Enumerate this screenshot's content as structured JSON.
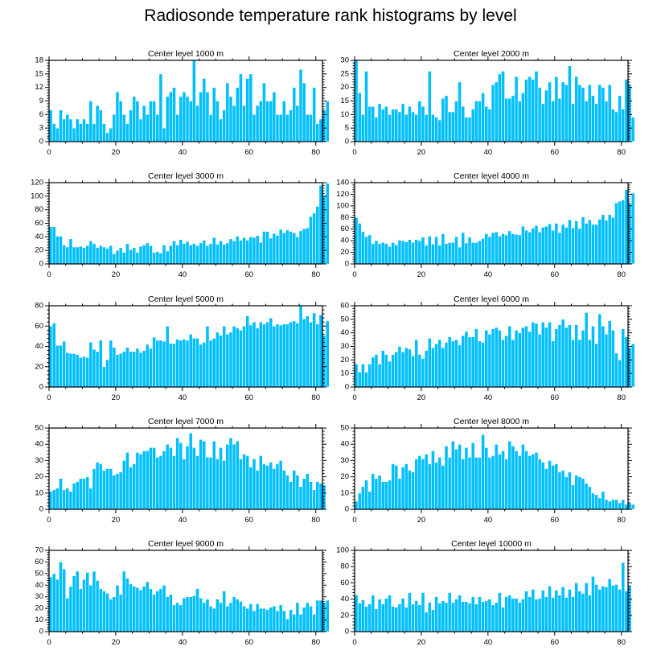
{
  "title": "Radiosonde temperature rank histograms by level",
  "chart_data": [
    {
      "type": "bar",
      "title": "Center level 1000 m",
      "xlim": [
        0,
        82
      ],
      "ylim": [
        0,
        18
      ],
      "yticks": [
        0,
        3,
        6,
        9,
        12,
        15,
        18
      ],
      "xticks": [
        0,
        20,
        40,
        60,
        80
      ],
      "values": [
        7,
        4,
        3,
        7,
        5,
        6,
        5,
        3,
        5,
        4,
        5,
        4,
        9,
        4,
        8,
        7,
        4,
        2,
        3,
        6,
        11,
        9,
        6,
        4,
        7,
        10,
        9,
        5,
        8,
        6,
        9,
        9,
        6,
        15,
        3,
        10,
        11,
        12,
        6,
        10,
        11,
        10,
        9,
        18,
        8,
        11,
        14,
        11,
        6,
        12,
        9,
        5,
        7,
        13,
        10,
        8,
        12,
        15,
        8,
        14,
        15,
        6,
        8,
        9,
        13,
        9,
        9,
        11,
        6,
        6,
        9,
        6,
        7,
        12,
        8,
        16,
        13,
        6,
        6,
        12,
        4,
        5,
        7,
        9
      ]
    },
    {
      "type": "bar",
      "title": "Center level 2000 m",
      "xlim": [
        0,
        82
      ],
      "ylim": [
        0,
        30
      ],
      "yticks": [
        0,
        5,
        10,
        15,
        20,
        25,
        30
      ],
      "xticks": [
        0,
        20,
        40,
        60,
        80
      ],
      "values": [
        30,
        18,
        10,
        26,
        13,
        13,
        9,
        14,
        12,
        13,
        10,
        12,
        12,
        11,
        14,
        10,
        13,
        11,
        10,
        15,
        13,
        10,
        26,
        10,
        9,
        8,
        16,
        17,
        11,
        11,
        15,
        22,
        13,
        9,
        9,
        12,
        15,
        15,
        18,
        13,
        12,
        21,
        22,
        25,
        26,
        16,
        16,
        17,
        24,
        15,
        18,
        23,
        24,
        23,
        26,
        20,
        14,
        19,
        22,
        15,
        24,
        16,
        22,
        21,
        28,
        14,
        24,
        21,
        20,
        15,
        21,
        17,
        14,
        21,
        20,
        15,
        21,
        12,
        11,
        17,
        12,
        23,
        21,
        9
      ]
    },
    {
      "type": "bar",
      "title": "Center level 3000 m",
      "xlim": [
        0,
        82
      ],
      "ylim": [
        0,
        120
      ],
      "yticks": [
        0,
        20,
        40,
        60,
        80,
        100,
        120
      ],
      "xticks": [
        0,
        20,
        40,
        60,
        80
      ],
      "values": [
        55,
        55,
        41,
        41,
        28,
        25,
        37,
        25,
        25,
        26,
        24,
        27,
        34,
        30,
        24,
        27,
        25,
        23,
        27,
        15,
        20,
        24,
        17,
        30,
        21,
        24,
        17,
        26,
        28,
        31,
        27,
        17,
        18,
        16,
        28,
        19,
        27,
        34,
        28,
        36,
        30,
        33,
        28,
        30,
        27,
        31,
        35,
        27,
        30,
        39,
        29,
        34,
        29,
        31,
        37,
        34,
        41,
        35,
        39,
        35,
        40,
        39,
        42,
        32,
        48,
        48,
        38,
        45,
        42,
        51,
        46,
        50,
        48,
        46,
        40,
        49,
        52,
        53,
        70,
        75,
        85,
        116,
        100,
        119
      ]
    },
    {
      "type": "bar",
      "title": "Center level 4000 m",
      "xlim": [
        0,
        82
      ],
      "ylim": [
        0,
        140
      ],
      "yticks": [
        0,
        20,
        40,
        60,
        80,
        100,
        120,
        140
      ],
      "xticks": [
        0,
        20,
        40,
        60,
        80
      ],
      "values": [
        80,
        70,
        56,
        47,
        50,
        35,
        40,
        35,
        37,
        35,
        30,
        37,
        33,
        41,
        40,
        38,
        42,
        37,
        42,
        40,
        46,
        32,
        48,
        34,
        47,
        32,
        52,
        35,
        37,
        37,
        47,
        29,
        54,
        36,
        46,
        37,
        37,
        40,
        44,
        52,
        47,
        54,
        55,
        48,
        52,
        50,
        57,
        52,
        51,
        50,
        65,
        58,
        55,
        62,
        66,
        55,
        63,
        65,
        69,
        58,
        70,
        54,
        68,
        63,
        76,
        62,
        74,
        61,
        81,
        70,
        76,
        68,
        68,
        77,
        85,
        75,
        85,
        80,
        105,
        108,
        110,
        128,
        105,
        122
      ]
    },
    {
      "type": "bar",
      "title": "Center level 5000 m",
      "xlim": [
        0,
        82
      ],
      "ylim": [
        0,
        80
      ],
      "yticks": [
        0,
        20,
        40,
        60,
        80
      ],
      "xticks": [
        0,
        20,
        40,
        60,
        80
      ],
      "values": [
        60,
        63,
        41,
        41,
        45,
        34,
        33,
        33,
        32,
        29,
        30,
        29,
        44,
        37,
        35,
        46,
        20,
        27,
        46,
        39,
        32,
        33,
        35,
        39,
        35,
        35,
        38,
        34,
        36,
        42,
        38,
        49,
        46,
        46,
        45,
        60,
        43,
        43,
        47,
        46,
        47,
        46,
        52,
        48,
        48,
        42,
        44,
        60,
        46,
        48,
        54,
        51,
        60,
        52,
        54,
        60,
        58,
        56,
        60,
        70,
        61,
        64,
        58,
        64,
        62,
        64,
        68,
        60,
        62,
        61,
        62,
        62,
        64,
        65,
        63,
        80,
        67,
        70,
        64,
        73,
        62,
        71,
        51,
        65
      ]
    },
    {
      "type": "bar",
      "title": "Center level 6000 m",
      "xlim": [
        0,
        82
      ],
      "ylim": [
        0,
        60
      ],
      "yticks": [
        0,
        10,
        20,
        30,
        40,
        50,
        60
      ],
      "xticks": [
        0,
        20,
        40,
        60,
        80
      ],
      "values": [
        17,
        11,
        17,
        11,
        17,
        22,
        24,
        17,
        27,
        24,
        19,
        24,
        26,
        30,
        26,
        29,
        28,
        23,
        35,
        24,
        21,
        27,
        36,
        29,
        32,
        35,
        29,
        33,
        37,
        34,
        35,
        31,
        38,
        41,
        37,
        37,
        43,
        34,
        33,
        42,
        39,
        43,
        44,
        42,
        35,
        38,
        45,
        35,
        42,
        40,
        44,
        45,
        41,
        48,
        47,
        39,
        48,
        44,
        48,
        34,
        43,
        46,
        50,
        44,
        46,
        35,
        46,
        35,
        42,
        55,
        35,
        45,
        32,
        54,
        45,
        39,
        49,
        42,
        25,
        20,
        43,
        37,
        29,
        32
      ]
    },
    {
      "type": "bar",
      "title": "Center level 7000 m",
      "xlim": [
        0,
        82
      ],
      "ylim": [
        0,
        50
      ],
      "yticks": [
        0,
        10,
        20,
        30,
        40,
        50
      ],
      "xticks": [
        0,
        20,
        40,
        60,
        80
      ],
      "values": [
        11,
        12,
        13,
        19,
        12,
        13,
        11,
        16,
        17,
        19,
        19,
        20,
        13,
        25,
        29,
        28,
        24,
        25,
        25,
        21,
        22,
        23,
        30,
        35,
        26,
        28,
        35,
        34,
        36,
        36,
        38,
        38,
        32,
        33,
        36,
        40,
        38,
        33,
        44,
        41,
        31,
        39,
        47,
        38,
        33,
        43,
        42,
        32,
        32,
        42,
        31,
        38,
        30,
        40,
        44,
        40,
        42,
        31,
        34,
        33,
        26,
        31,
        24,
        33,
        28,
        27,
        29,
        25,
        28,
        30,
        24,
        21,
        17,
        24,
        21,
        14,
        19,
        22,
        17,
        12,
        17,
        16,
        15
      ]
    },
    {
      "type": "bar",
      "title": "Center level 8000 m",
      "xlim": [
        0,
        82
      ],
      "ylim": [
        0,
        50
      ],
      "yticks": [
        0,
        10,
        20,
        30,
        40,
        50
      ],
      "xticks": [
        0,
        20,
        40,
        60,
        80
      ],
      "values": [
        5,
        10,
        14,
        18,
        11,
        22,
        19,
        21,
        17,
        17,
        18,
        28,
        27,
        19,
        26,
        28,
        24,
        23,
        31,
        33,
        31,
        34,
        28,
        36,
        29,
        32,
        27,
        39,
        32,
        42,
        37,
        40,
        31,
        38,
        32,
        41,
        32,
        32,
        46,
        38,
        32,
        33,
        40,
        34,
        36,
        31,
        42,
        39,
        36,
        33,
        40,
        36,
        33,
        34,
        35,
        31,
        29,
        25,
        30,
        27,
        28,
        23,
        24,
        20,
        23,
        15,
        21,
        20,
        19,
        16,
        14,
        10,
        9,
        7,
        11,
        6,
        5,
        6,
        6,
        4,
        6,
        3,
        4,
        3
      ]
    },
    {
      "type": "bar",
      "title": "Center level 9000 m",
      "xlim": [
        0,
        82
      ],
      "ylim": [
        0,
        70
      ],
      "yticks": [
        0,
        10,
        20,
        30,
        40,
        50,
        60,
        70
      ],
      "xticks": [
        0,
        20,
        40,
        60,
        80
      ],
      "values": [
        47,
        50,
        45,
        60,
        54,
        29,
        39,
        48,
        52,
        37,
        45,
        51,
        40,
        52,
        44,
        37,
        35,
        33,
        28,
        30,
        40,
        32,
        52,
        46,
        41,
        39,
        38,
        36,
        39,
        43,
        37,
        32,
        35,
        37,
        40,
        30,
        32,
        23,
        25,
        23,
        29,
        30,
        30,
        31,
        37,
        29,
        25,
        28,
        22,
        20,
        28,
        25,
        35,
        22,
        25,
        30,
        28,
        26,
        22,
        20,
        24,
        18,
        24,
        20,
        20,
        19,
        21,
        22,
        18,
        23,
        18,
        11,
        19,
        15,
        25,
        15,
        21,
        25,
        22,
        15,
        27,
        27,
        25,
        27
      ]
    },
    {
      "type": "bar",
      "title": "Center level 10000 m",
      "xlim": [
        0,
        82
      ],
      "ylim": [
        0,
        100
      ],
      "yticks": [
        0,
        20,
        40,
        60,
        80,
        100
      ],
      "xticks": [
        0,
        20,
        40,
        60,
        80
      ],
      "values": [
        45,
        35,
        39,
        31,
        34,
        45,
        28,
        40,
        34,
        41,
        45,
        31,
        30,
        34,
        41,
        30,
        48,
        34,
        38,
        33,
        48,
        24,
        36,
        27,
        43,
        35,
        38,
        36,
        48,
        36,
        40,
        45,
        37,
        37,
        35,
        43,
        34,
        43,
        37,
        38,
        40,
        33,
        36,
        48,
        30,
        43,
        45,
        41,
        41,
        36,
        40,
        50,
        43,
        52,
        40,
        41,
        51,
        43,
        56,
        42,
        51,
        45,
        55,
        42,
        52,
        43,
        60,
        50,
        47,
        60,
        45,
        68,
        58,
        52,
        56,
        55,
        65,
        57,
        58,
        52,
        85,
        50,
        57
      ]
    }
  ]
}
